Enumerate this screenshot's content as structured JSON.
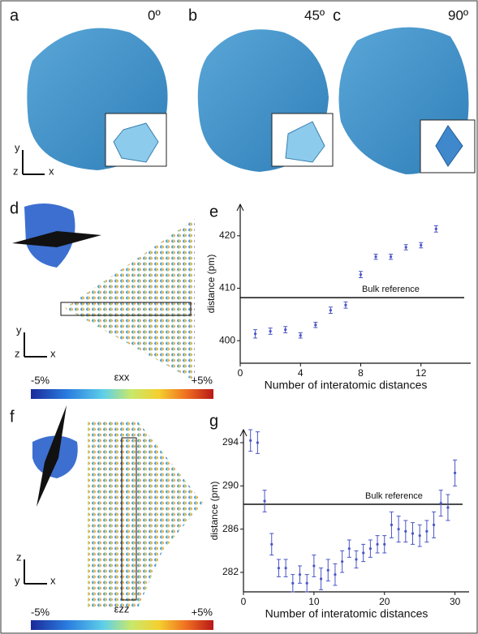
{
  "figure": {
    "panel_labels": [
      "a",
      "b",
      "c",
      "d",
      "e",
      "f",
      "g"
    ],
    "angles": [
      "0º",
      "45º",
      "90º"
    ],
    "triad_top": [
      "y",
      "z",
      "x"
    ],
    "triad_d": [
      "y",
      "z",
      "x"
    ],
    "triad_f": [
      "z",
      "y",
      "x"
    ],
    "colorbar_d": [
      "-5%",
      "εxx",
      "+5%"
    ],
    "colorbar_f": [
      "-5%",
      "εzz",
      "+5%"
    ]
  },
  "chart_data": [
    {
      "type": "scatter",
      "xlabel": "Number of interatomic distances",
      "ylabel": "distance (pm)",
      "x": [
        1,
        2,
        3,
        4,
        5,
        6,
        7,
        8,
        9,
        10,
        11,
        12,
        13
      ],
      "values": [
        401.3,
        401.8,
        402.1,
        401.0,
        403.0,
        405.8,
        406.8,
        412.6,
        416.0,
        416.0,
        417.8,
        418.2,
        421.3
      ],
      "errors": [
        0.8,
        0.6,
        0.6,
        0.5,
        0.5,
        0.6,
        0.6,
        0.6,
        0.5,
        0.5,
        0.5,
        0.5,
        0.6
      ],
      "color": "#4a55c8",
      "xlim": [
        0,
        15.3
      ],
      "ylim": [
        395.7,
        426
      ],
      "xticks": [
        0,
        4,
        8,
        12
      ],
      "yticks": [
        400,
        410,
        420
      ],
      "reference_line": {
        "y": 408.2,
        "label": "Bulk reference"
      }
    },
    {
      "type": "scatter",
      "xlabel": "Number of interatomic distances",
      "ylabel": "distance (pm)",
      "x": [
        1,
        2,
        3,
        4,
        5,
        6,
        7,
        8,
        9,
        10,
        11,
        12,
        13,
        14,
        15,
        16,
        17,
        18,
        19,
        20,
        21,
        22,
        23,
        24,
        25,
        26,
        27,
        28,
        29,
        30
      ],
      "values": [
        294.2,
        294.0,
        288.6,
        284.6,
        282.4,
        282.4,
        281.0,
        281.8,
        281.0,
        282.6,
        281.4,
        282.2,
        281.8,
        283.0,
        284.2,
        283.2,
        283.8,
        284.2,
        284.6,
        284.6,
        286.4,
        286.0,
        285.8,
        285.6,
        285.4,
        285.8,
        286.4,
        288.4,
        288.0,
        291.2
      ],
      "errors": [
        1.0,
        1.0,
        1.0,
        1.0,
        0.8,
        0.8,
        0.8,
        0.8,
        0.8,
        1.0,
        1.0,
        1.0,
        1.0,
        1.0,
        0.8,
        0.8,
        0.8,
        0.8,
        0.8,
        0.8,
        1.2,
        1.2,
        1.0,
        1.0,
        1.0,
        1.0,
        1.2,
        1.2,
        1.2,
        1.2
      ],
      "color": "#4a55c8",
      "xlim": [
        0,
        32
      ],
      "ylim": [
        280.2,
        295.2
      ],
      "xticks": [
        0,
        10,
        20,
        30
      ],
      "yticks": [
        282,
        286,
        290,
        294
      ],
      "reference_line": {
        "y": 288.3,
        "label": "Bulk reference"
      }
    }
  ]
}
